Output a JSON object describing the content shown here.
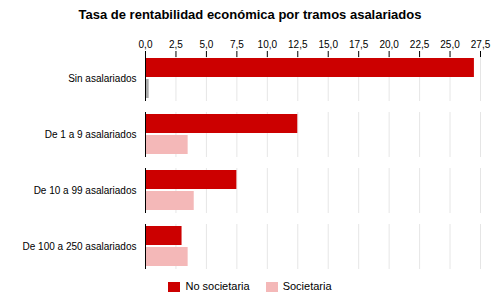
{
  "chart_data": {
    "type": "bar",
    "orientation": "horizontal",
    "title": "Tasa de rentabilidad económica por tramos asalariados",
    "categories": [
      "Sin asalariados",
      "De 1 a 9 asalariados",
      "De 10 a 99 asalariados",
      "De 100 a 250 asalariados"
    ],
    "series": [
      {
        "name": "No societaria",
        "color": "#cc0000",
        "values": [
          27.0,
          12.5,
          7.5,
          3.0
        ]
      },
      {
        "name": "Societaria",
        "color": "#f4b8b8",
        "colors": [
          "#aaaaaa",
          "#f4b8b8",
          "#f4b8b8",
          "#f4b8b8"
        ],
        "values": [
          0.3,
          3.5,
          4.0,
          3.5
        ]
      }
    ],
    "xlim": [
      0,
      27.5
    ],
    "xticks": [
      {
        "value": 0.0,
        "label": "0,0"
      },
      {
        "value": 2.5,
        "label": "2,5"
      },
      {
        "value": 5.0,
        "label": "5,0"
      },
      {
        "value": 7.5,
        "label": "7,5"
      },
      {
        "value": 10.0,
        "label": "10,0"
      },
      {
        "value": 12.5,
        "label": "12,5"
      },
      {
        "value": 15.0,
        "label": "15,0"
      },
      {
        "value": 17.5,
        "label": "17,5"
      },
      {
        "value": 20.0,
        "label": "20,0"
      },
      {
        "value": 22.5,
        "label": "22,5"
      },
      {
        "value": 25.0,
        "label": "25,0"
      },
      {
        "value": 27.5,
        "label": "27,5"
      }
    ],
    "grid": true,
    "legend": "bottom"
  }
}
